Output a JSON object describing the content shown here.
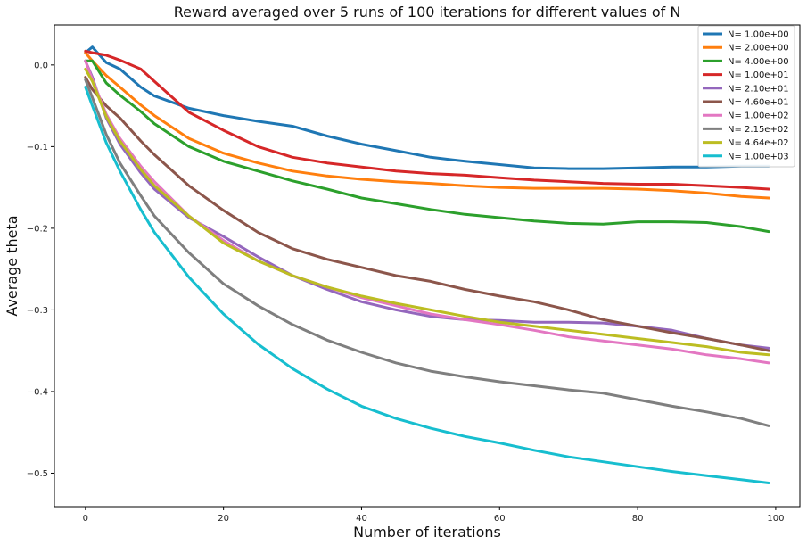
{
  "chart_data": {
    "type": "line",
    "title": "Reward averaged over 5 runs of 100 iterations for different values of N",
    "xlabel": "Number of iterations",
    "ylabel": "Average theta",
    "xlim": [
      -4.5,
      103.5
    ],
    "ylim": [
      -0.541,
      0.049
    ],
    "xticks": [
      0,
      20,
      40,
      60,
      80,
      100
    ],
    "xtick_labels": [
      "0",
      "20",
      "40",
      "60",
      "80",
      "100"
    ],
    "yticks": [
      0.0,
      -0.1,
      -0.2,
      -0.3,
      -0.4,
      -0.5
    ],
    "ytick_labels": [
      "0.0",
      "−0.1",
      "−0.2",
      "−0.3",
      "−0.4",
      "−0.5"
    ],
    "grid": false,
    "legend_position": "top-right",
    "x": [
      0,
      1,
      3,
      5,
      8,
      10,
      15,
      20,
      25,
      30,
      35,
      40,
      45,
      50,
      55,
      60,
      65,
      70,
      75,
      80,
      85,
      90,
      95,
      99
    ],
    "series": [
      {
        "name": "N= 1.00e+00",
        "color": "#1f77b4",
        "values": [
          0.015,
          0.022,
          0.003,
          -0.005,
          -0.027,
          -0.038,
          -0.053,
          -0.062,
          -0.069,
          -0.075,
          -0.087,
          -0.097,
          -0.105,
          -0.113,
          -0.118,
          -0.122,
          -0.126,
          -0.127,
          -0.127,
          -0.126,
          -0.125,
          -0.125,
          -0.124,
          -0.124
        ]
      },
      {
        "name": "N= 2.00e+00",
        "color": "#ff7f0e",
        "values": [
          0.015,
          0.005,
          -0.013,
          -0.027,
          -0.049,
          -0.062,
          -0.09,
          -0.108,
          -0.12,
          -0.13,
          -0.136,
          -0.14,
          -0.143,
          -0.145,
          -0.148,
          -0.15,
          -0.151,
          -0.151,
          -0.151,
          -0.152,
          -0.154,
          -0.157,
          -0.161,
          -0.163
        ]
      },
      {
        "name": "N= 4.00e+00",
        "color": "#2ca02c",
        "values": [
          0.005,
          0.005,
          -0.022,
          -0.037,
          -0.057,
          -0.072,
          -0.1,
          -0.118,
          -0.13,
          -0.142,
          -0.152,
          -0.163,
          -0.17,
          -0.177,
          -0.183,
          -0.187,
          -0.191,
          -0.194,
          -0.195,
          -0.192,
          -0.192,
          -0.193,
          -0.198,
          -0.204
        ]
      },
      {
        "name": "N= 1.00e+01",
        "color": "#d62728",
        "values": [
          0.017,
          0.015,
          0.012,
          0.006,
          -0.005,
          -0.02,
          -0.058,
          -0.08,
          -0.1,
          -0.113,
          -0.12,
          -0.125,
          -0.13,
          -0.133,
          -0.135,
          -0.138,
          -0.141,
          -0.143,
          -0.145,
          -0.146,
          -0.146,
          -0.148,
          -0.15,
          -0.152
        ]
      },
      {
        "name": "N= 2.10e+01",
        "color": "#9467bd",
        "values": [
          0.005,
          -0.015,
          -0.065,
          -0.097,
          -0.132,
          -0.152,
          -0.187,
          -0.21,
          -0.235,
          -0.258,
          -0.275,
          -0.29,
          -0.3,
          -0.308,
          -0.312,
          -0.313,
          -0.315,
          -0.315,
          -0.316,
          -0.32,
          -0.325,
          -0.335,
          -0.343,
          -0.347
        ]
      },
      {
        "name": "N= 4.60e+01",
        "color": "#8c564b",
        "values": [
          -0.015,
          -0.03,
          -0.05,
          -0.065,
          -0.093,
          -0.11,
          -0.148,
          -0.178,
          -0.205,
          -0.225,
          -0.238,
          -0.248,
          -0.258,
          -0.265,
          -0.275,
          -0.283,
          -0.29,
          -0.3,
          -0.312,
          -0.32,
          -0.328,
          -0.335,
          -0.343,
          -0.35
        ]
      },
      {
        "name": "N= 1.00e+02",
        "color": "#e377c2",
        "values": [
          0.005,
          -0.018,
          -0.06,
          -0.09,
          -0.124,
          -0.143,
          -0.185,
          -0.215,
          -0.24,
          -0.258,
          -0.272,
          -0.285,
          -0.295,
          -0.305,
          -0.312,
          -0.318,
          -0.325,
          -0.333,
          -0.338,
          -0.343,
          -0.348,
          -0.355,
          -0.36,
          -0.365
        ]
      },
      {
        "name": "N= 2.15e+02",
        "color": "#7f7f7f",
        "values": [
          -0.018,
          -0.04,
          -0.085,
          -0.12,
          -0.16,
          -0.185,
          -0.23,
          -0.268,
          -0.295,
          -0.318,
          -0.337,
          -0.352,
          -0.365,
          -0.375,
          -0.382,
          -0.388,
          -0.393,
          -0.398,
          -0.402,
          -0.41,
          -0.418,
          -0.425,
          -0.433,
          -0.442
        ]
      },
      {
        "name": "N= 4.64e+02",
        "color": "#bcbd22",
        "values": [
          -0.005,
          -0.02,
          -0.063,
          -0.093,
          -0.128,
          -0.148,
          -0.185,
          -0.218,
          -0.24,
          -0.258,
          -0.272,
          -0.283,
          -0.292,
          -0.3,
          -0.308,
          -0.315,
          -0.32,
          -0.325,
          -0.33,
          -0.335,
          -0.34,
          -0.345,
          -0.352,
          -0.355
        ]
      },
      {
        "name": "N= 1.00e+03",
        "color": "#17becf",
        "values": [
          -0.027,
          -0.05,
          -0.095,
          -0.13,
          -0.177,
          -0.205,
          -0.26,
          -0.305,
          -0.342,
          -0.372,
          -0.397,
          -0.418,
          -0.433,
          -0.445,
          -0.455,
          -0.463,
          -0.472,
          -0.48,
          -0.486,
          -0.492,
          -0.498,
          -0.503,
          -0.508,
          -0.512
        ]
      }
    ]
  }
}
